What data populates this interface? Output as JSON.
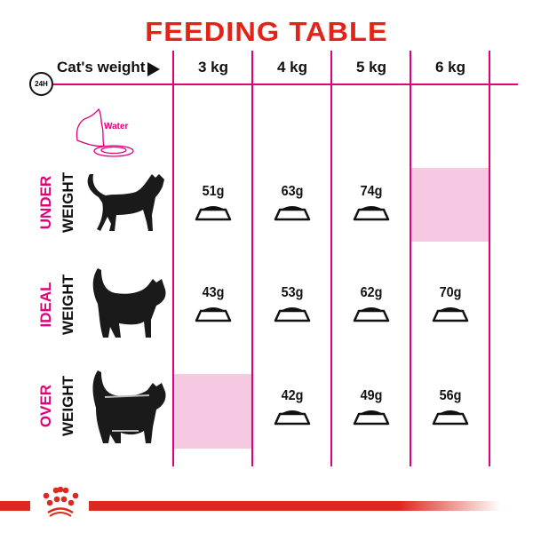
{
  "title": "FEEDING TABLE",
  "header": {
    "period_label": "24H",
    "weight_label": "Cat's weight",
    "columns": [
      "3 kg",
      "4 kg",
      "5 kg",
      "6 kg"
    ]
  },
  "water_label": "Water",
  "rows": [
    {
      "label_top": "UNDER",
      "label_bottom": "WEIGHT",
      "cells": [
        "51g",
        "63g",
        "74g",
        null
      ]
    },
    {
      "label_top": "IDEAL",
      "label_bottom": "WEIGHT",
      "cells": [
        "43g",
        "53g",
        "62g",
        "70g"
      ]
    },
    {
      "label_top": "OVER",
      "label_bottom": "WEIGHT",
      "cells": [
        null,
        "42g",
        "49g",
        "56g"
      ]
    }
  ],
  "colors": {
    "title": "#e2231a",
    "grid": "#e2007a",
    "unavailable": "#f6c9e2",
    "brand": "#dc2a20"
  },
  "icons": [
    "clock-24h-icon",
    "play-arrow-icon",
    "water-bowl-icon",
    "cat-icon",
    "food-bowl-icon",
    "royal-canin-crown-logo"
  ]
}
